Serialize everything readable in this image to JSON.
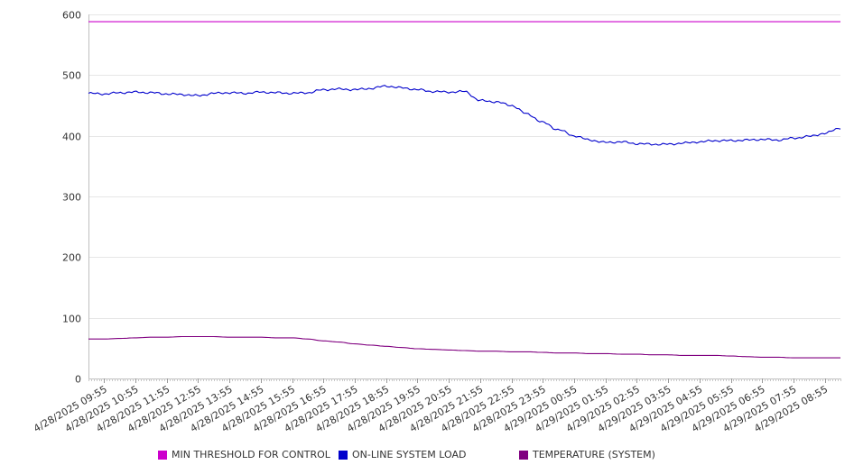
{
  "chart_data": {
    "type": "line",
    "title": "",
    "xlabel": "",
    "ylabel": "",
    "ylim": [
      0,
      600
    ],
    "yticks": [
      0,
      100,
      200,
      300,
      400,
      500,
      600
    ],
    "grid": true,
    "legend_position": "bottom",
    "x_tick_labels": [
      "4/28/2025 09:55",
      "4/28/2025 10:55",
      "4/28/2025 11:55",
      "4/28/2025 12:55",
      "4/28/2025 13:55",
      "4/28/2025 14:55",
      "4/28/2025 15:55",
      "4/28/2025 16:55",
      "4/28/2025 17:55",
      "4/28/2025 18:55",
      "4/28/2025 19:55",
      "4/28/2025 20:55",
      "4/28/2025 21:55",
      "4/28/2025 22:55",
      "4/28/2025 23:55",
      "4/29/2025 00:55",
      "4/29/2025 01:55",
      "4/29/2025 02:55",
      "4/29/2025 03:55",
      "4/29/2025 04:55",
      "4/29/2025 05:55",
      "4/29/2025 06:55",
      "4/29/2025 07:55",
      "4/29/2025 08:55"
    ],
    "x": [
      "4/28/2025 09:25",
      "4/28/2025 09:55",
      "4/28/2025 10:25",
      "4/28/2025 10:55",
      "4/28/2025 11:25",
      "4/28/2025 11:55",
      "4/28/2025 12:25",
      "4/28/2025 12:55",
      "4/28/2025 13:25",
      "4/28/2025 13:55",
      "4/28/2025 14:25",
      "4/28/2025 14:55",
      "4/28/2025 15:25",
      "4/28/2025 15:55",
      "4/28/2025 16:25",
      "4/28/2025 16:55",
      "4/28/2025 17:25",
      "4/28/2025 17:55",
      "4/28/2025 18:25",
      "4/28/2025 18:55",
      "4/28/2025 19:25",
      "4/28/2025 19:55",
      "4/28/2025 20:25",
      "4/28/2025 20:55",
      "4/28/2025 21:25",
      "4/28/2025 21:55",
      "4/28/2025 22:25",
      "4/28/2025 22:55",
      "4/28/2025 23:25",
      "4/28/2025 23:55",
      "4/29/2025 00:25",
      "4/29/2025 00:55",
      "4/29/2025 01:25",
      "4/29/2025 01:55",
      "4/29/2025 02:25",
      "4/29/2025 02:55",
      "4/29/2025 03:25",
      "4/29/2025 03:55",
      "4/29/2025 04:25",
      "4/29/2025 04:55",
      "4/29/2025 05:25",
      "4/29/2025 05:55",
      "4/29/2025 06:25",
      "4/29/2025 06:55",
      "4/29/2025 07:25",
      "4/29/2025 07:55",
      "4/29/2025 08:25",
      "4/29/2025 08:55",
      "4/29/2025 09:25"
    ],
    "series": [
      {
        "name": "MIN THRESHOLD FOR CONTROL",
        "color": "#cc00cc",
        "values": [
          588,
          588,
          588,
          588,
          588,
          588,
          588,
          588,
          588,
          588,
          588,
          588,
          588,
          588,
          588,
          588,
          588,
          588,
          588,
          588,
          588,
          588,
          588,
          588,
          588,
          588,
          588,
          588,
          588,
          588,
          588,
          588,
          588,
          588,
          588,
          588,
          588,
          588,
          588,
          588,
          588,
          588,
          588,
          588,
          588,
          588,
          588,
          588,
          588
        ]
      },
      {
        "name": "ON-LINE SYSTEM LOAD",
        "color": "#0000cc",
        "values": [
          470,
          469,
          471,
          472,
          471,
          469,
          468,
          466,
          470,
          471,
          470,
          472,
          471,
          470,
          471,
          476,
          477,
          476,
          478,
          482,
          479,
          476,
          473,
          472,
          473,
          458,
          456,
          450,
          436,
          422,
          410,
          400,
          393,
          389,
          390,
          387,
          386,
          386,
          388,
          390,
          392,
          392,
          393,
          394,
          393,
          396,
          399,
          404,
          413
        ]
      },
      {
        "name": "TEMPERATURE (SYSTEM)",
        "color": "#800080",
        "values": [
          65,
          65,
          66,
          67,
          68,
          68,
          69,
          69,
          69,
          68,
          68,
          68,
          67,
          67,
          65,
          62,
          60,
          57,
          55,
          53,
          51,
          49,
          48,
          47,
          46,
          45,
          45,
          44,
          44,
          43,
          42,
          42,
          41,
          41,
          40,
          40,
          39,
          39,
          38,
          38,
          38,
          37,
          36,
          35,
          35,
          34,
          34,
          34,
          34
        ]
      }
    ]
  }
}
